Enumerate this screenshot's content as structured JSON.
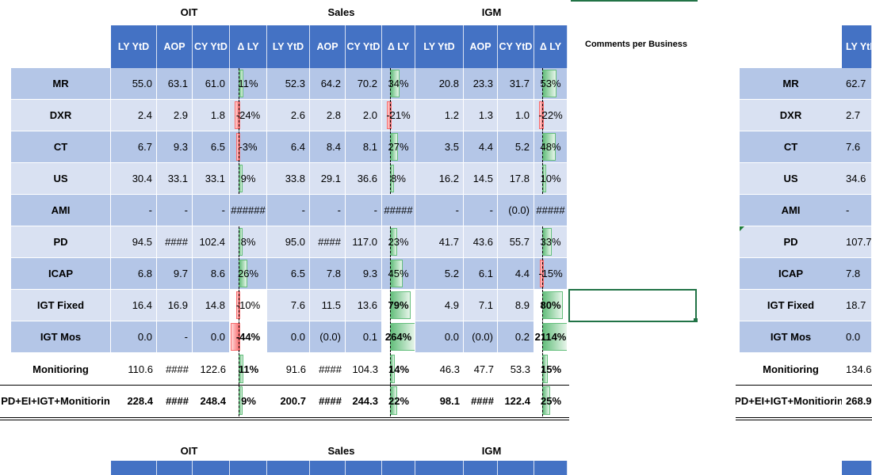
{
  "groups": [
    "OIT",
    "Sales",
    "IGM"
  ],
  "columns": [
    "LY YtD",
    "AOP",
    "CY YtD",
    "Δ LY"
  ],
  "comments_header": "Comments per Business",
  "right_header_partial": "LY YtD",
  "rows": [
    {
      "label": "MR",
      "oit": [
        "55.0",
        "63.1",
        "61.0",
        "11%"
      ],
      "sales": [
        "52.3",
        "64.2",
        "70.2",
        "34%"
      ],
      "igm": [
        "20.8",
        "23.3",
        "31.7",
        "53%"
      ],
      "right": "62.7"
    },
    {
      "label": "DXR",
      "oit": [
        "2.4",
        "2.9",
        "1.8",
        "-24%"
      ],
      "sales": [
        "2.6",
        "2.8",
        "2.0",
        "-21%"
      ],
      "igm": [
        "1.2",
        "1.3",
        "1.0",
        "-22%"
      ],
      "right": "2.7"
    },
    {
      "label": "CT",
      "oit": [
        "6.7",
        "9.3",
        "6.5",
        "-3%"
      ],
      "sales": [
        "6.4",
        "8.4",
        "8.1",
        "27%"
      ],
      "igm": [
        "3.5",
        "4.4",
        "5.2",
        "48%"
      ],
      "right": "7.6"
    },
    {
      "label": "US",
      "oit": [
        "30.4",
        "33.1",
        "33.1",
        "9%"
      ],
      "sales": [
        "33.8",
        "29.1",
        "36.6",
        "8%"
      ],
      "igm": [
        "16.2",
        "14.5",
        "17.8",
        "10%"
      ],
      "right": "34.6"
    },
    {
      "label": "AMI",
      "oit": [
        "-",
        "-",
        "-",
        "######"
      ],
      "sales": [
        "-",
        "-",
        "-",
        "#####"
      ],
      "igm": [
        "-",
        "-",
        "(0.0)",
        "#####"
      ],
      "right": "-"
    },
    {
      "label": "PD",
      "oit": [
        "94.5",
        "####",
        "102.4",
        "8%"
      ],
      "sales": [
        "95.0",
        "####",
        "117.0",
        "23%"
      ],
      "igm": [
        "41.7",
        "43.6",
        "55.7",
        "33%"
      ],
      "right": "107.7"
    },
    {
      "label": "ICAP",
      "oit": [
        "6.8",
        "9.7",
        "8.6",
        "26%"
      ],
      "sales": [
        "6.5",
        "7.8",
        "9.3",
        "45%"
      ],
      "igm": [
        "5.2",
        "6.1",
        "4.4",
        "-15%"
      ],
      "right": "7.8"
    },
    {
      "label": "IGT Fixed",
      "oit": [
        "16.4",
        "16.9",
        "14.8",
        "-10%"
      ],
      "sales": [
        "7.6",
        "11.5",
        "13.6",
        "79%"
      ],
      "igm": [
        "4.9",
        "7.1",
        "8.9",
        "80%"
      ],
      "right": "18.7"
    },
    {
      "label": "IGT Mos",
      "oit": [
        "0.0",
        "-",
        "0.0",
        "-44%"
      ],
      "sales": [
        "0.0",
        "(0.0)",
        "0.1",
        "264%"
      ],
      "igm": [
        "0.0",
        "(0.0)",
        "0.2",
        "2114%"
      ],
      "right": "0.0"
    },
    {
      "label": "Monitioring",
      "oit": [
        "110.6",
        "####",
        "122.6",
        "11%"
      ],
      "sales": [
        "91.6",
        "####",
        "104.3",
        "14%"
      ],
      "igm": [
        "46.3",
        "47.7",
        "53.3",
        "15%"
      ],
      "right": "134.6"
    },
    {
      "label": "PD+EI+IGT+Monitiorin",
      "oit": [
        "228.4",
        "####",
        "248.4",
        "9%"
      ],
      "sales": [
        "200.7",
        "####",
        "244.3",
        "22%"
      ],
      "igm": [
        "98.1",
        "####",
        "122.4",
        "25%"
      ],
      "right": "268.9"
    }
  ],
  "bottom_groups": [
    "OIT",
    "Sales",
    "IGM"
  ],
  "colors": {
    "header": "#4472c4",
    "band_dark": "#b4c6e7",
    "band_light": "#d9e1f2",
    "bar_pos": "#63be7b",
    "bar_neg": "#f8696b",
    "selection": "#217346"
  }
}
